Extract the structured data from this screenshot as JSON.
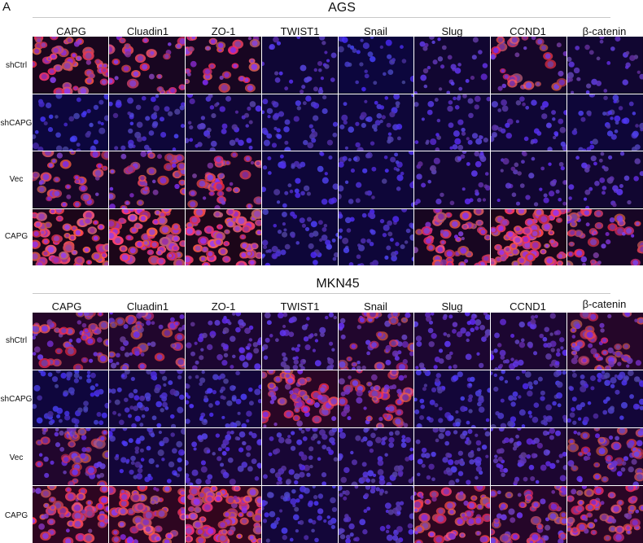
{
  "panel_label": "A",
  "sections": [
    {
      "id": "ags",
      "title": "AGS",
      "columns": [
        "CAPG",
        "Cluadin1",
        "ZO-1",
        "TWIST1",
        "Snail",
        "Slug",
        "CCND1",
        "β-catenin"
      ],
      "rows": [
        "shCtrl",
        "shCAPG",
        "Vec",
        "CAPG"
      ]
    },
    {
      "id": "mkn45",
      "title": "MKN45",
      "columns": [
        "CAPG",
        "Cluadin1",
        "ZO-1",
        "TWIST1",
        "Snail",
        "Slug",
        "CCND1",
        "β-catenin"
      ],
      "rows": [
        "shCtrl",
        "shCAPG",
        "Vec",
        "CAPG"
      ]
    }
  ],
  "colors": {
    "nucleus": "#3a3aff",
    "stain": "#ff4a4a",
    "background": "#05030f"
  }
}
